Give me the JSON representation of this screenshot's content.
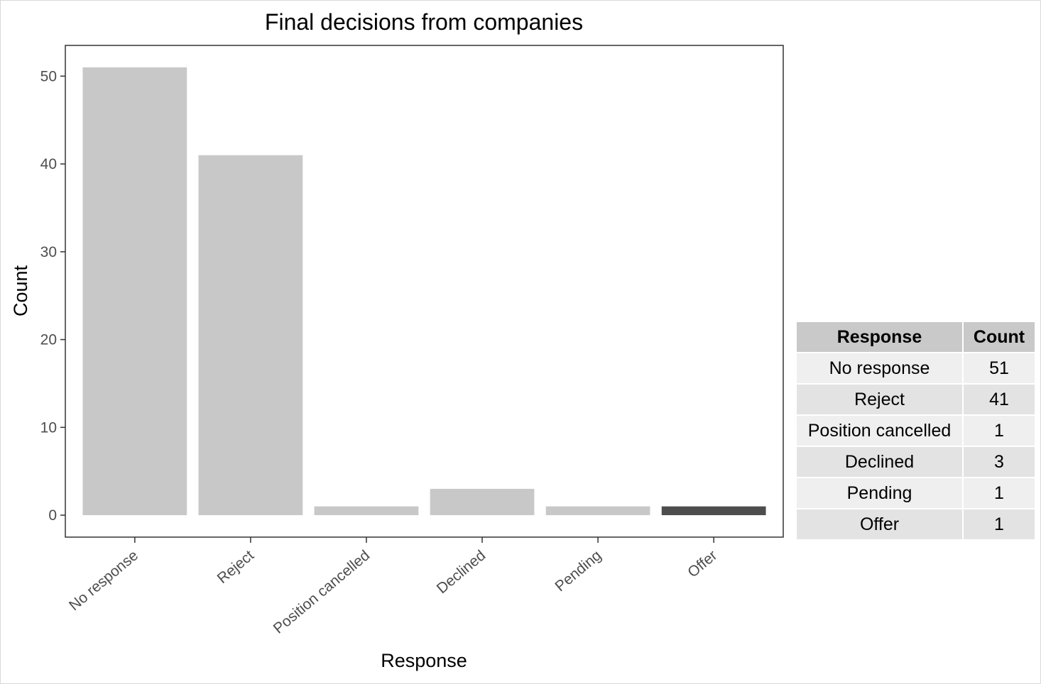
{
  "chart_data": {
    "type": "bar",
    "title": "Final decisions from companies",
    "xlabel": "Response",
    "ylabel": "Count",
    "categories": [
      "No response",
      "Reject",
      "Position cancelled",
      "Declined",
      "Pending",
      "Offer"
    ],
    "values": [
      51,
      41,
      1,
      3,
      1,
      1
    ],
    "ylim": [
      -2.5,
      53.5
    ],
    "yticks": [
      0,
      10,
      20,
      30,
      40,
      50
    ],
    "bar_colors": [
      "#c8c8c8",
      "#c8c8c8",
      "#c8c8c8",
      "#c8c8c8",
      "#c8c8c8",
      "#4d4d4d"
    ],
    "grid": false,
    "legend": "none"
  },
  "table": {
    "headers": [
      "Response",
      "Count"
    ],
    "rows": [
      [
        "No response",
        "51"
      ],
      [
        "Reject",
        "41"
      ],
      [
        "Position cancelled",
        "1"
      ],
      [
        "Declined",
        "3"
      ],
      [
        "Pending",
        "1"
      ],
      [
        "Offer",
        "1"
      ]
    ]
  }
}
